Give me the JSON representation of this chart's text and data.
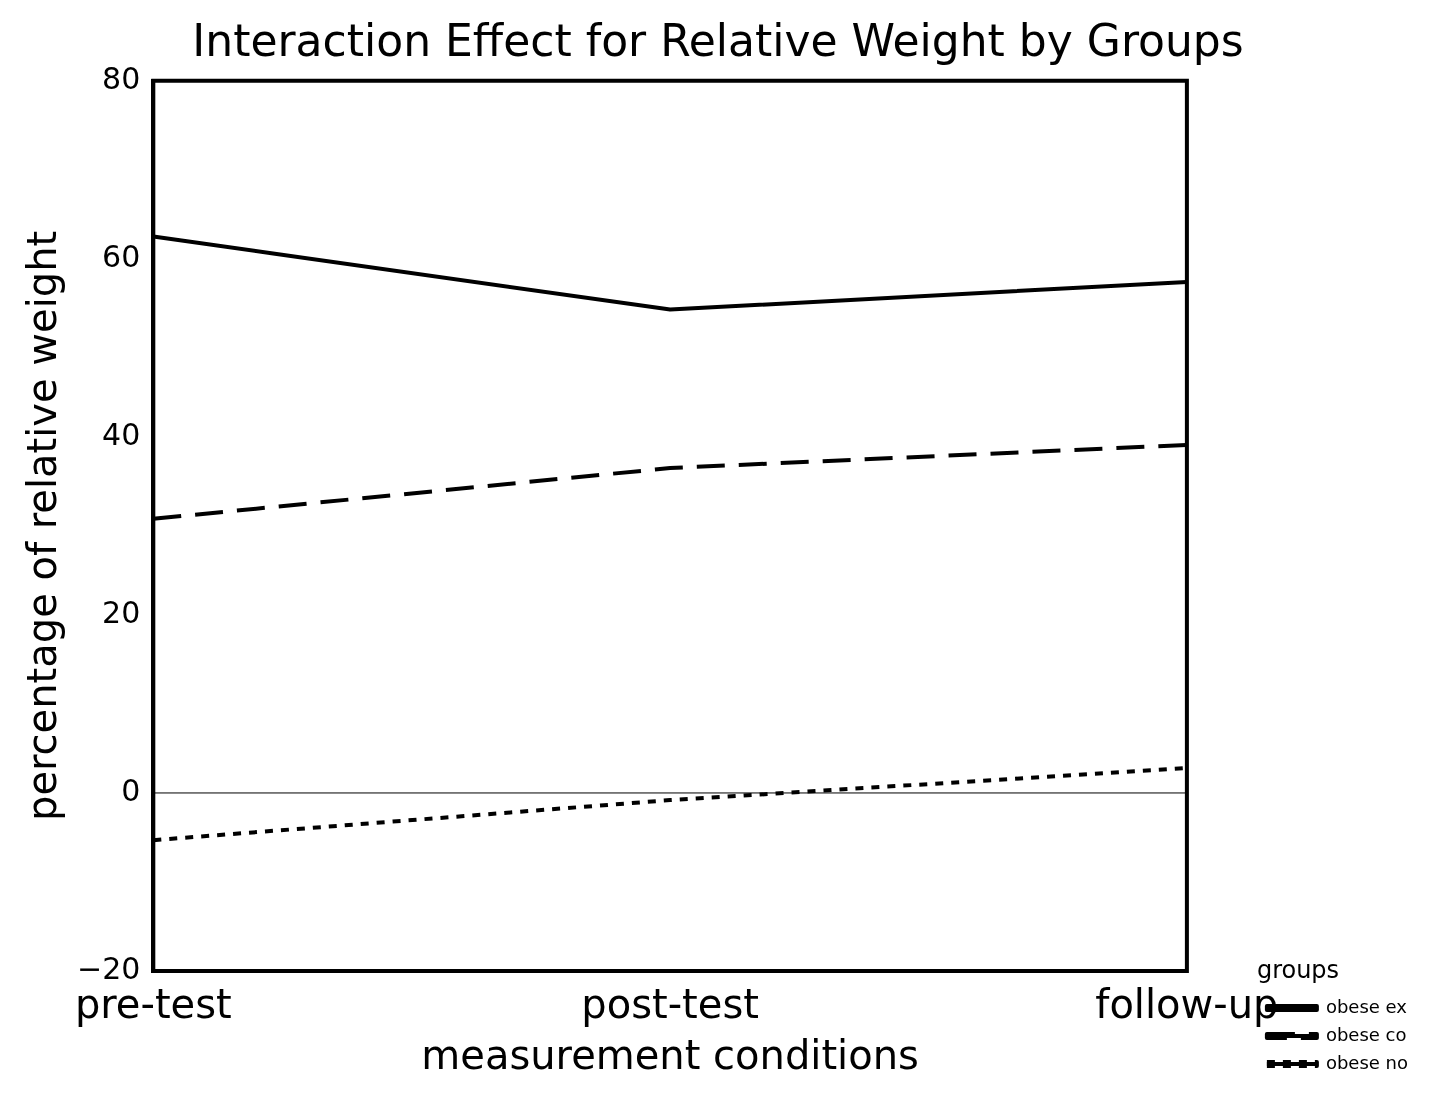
{
  "chart_data": {
    "type": "line",
    "title": "Interaction Effect for Relative Weight by Groups",
    "xlabel": "measurement conditions",
    "ylabel": "percentage of relative weight",
    "legend_title": "groups",
    "categories": [
      "pre-test",
      "post-test",
      "follow-up"
    ],
    "series": [
      {
        "name": "obese ex",
        "color": "#000000",
        "line_style": "solid",
        "values": [
          62.5,
          54.3,
          57.4
        ]
      },
      {
        "name": "obese co",
        "color": "#000000",
        "line_style": "dashed",
        "values": [
          30.8,
          36.5,
          39.1
        ]
      },
      {
        "name": "obese no",
        "color": "#000000",
        "line_style": "dotted",
        "values": [
          -5.3,
          -0.8,
          2.8
        ]
      }
    ],
    "ylim": [
      -20,
      80
    ],
    "yticks": [
      -20,
      0,
      20,
      40,
      60,
      80
    ],
    "grid": false,
    "legend": "bottom right",
    "marker": "none",
    "ref_lines": [
      {
        "axis": "y",
        "value": 0,
        "color": "#000000"
      }
    ]
  }
}
